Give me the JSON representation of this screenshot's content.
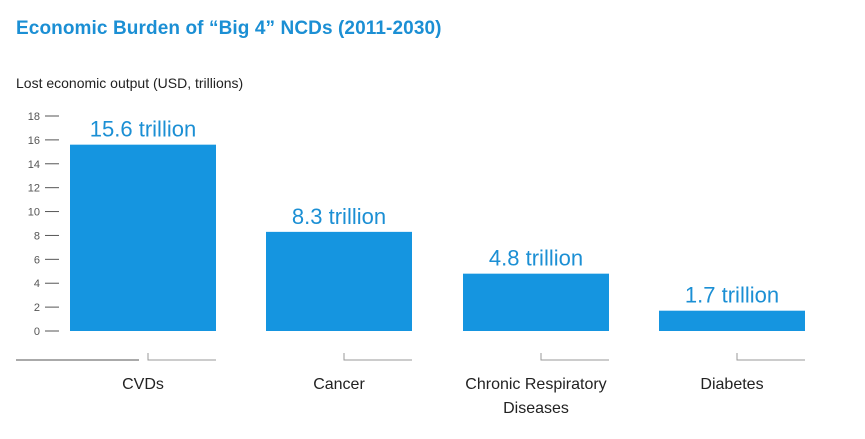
{
  "colors": {
    "accent": "#1b8fd4",
    "bar": "#1595e0",
    "axis": "#555555"
  },
  "chart_data": {
    "type": "bar",
    "title": "Economic Burden of “Big 4” NCDs (2011-2030)",
    "ylabel": "Lost economic output (USD, trillions)",
    "xlabel": "",
    "ylim": [
      0,
      18
    ],
    "yticks": [
      "0",
      "2",
      "4",
      "6",
      "8",
      "10",
      "12",
      "14",
      "16",
      "18"
    ],
    "grid": false,
    "categories": [
      [
        "CVDs"
      ],
      [
        "Cancer"
      ],
      [
        "Chronic Respiratory",
        "Diseases"
      ],
      [
        "Diabetes"
      ]
    ],
    "values": [
      15.6,
      8.3,
      4.8,
      1.7
    ],
    "data_labels": [
      "15.6 trillion",
      "8.3 trillion",
      "4.8 trillion",
      "1.7 trillion"
    ]
  }
}
